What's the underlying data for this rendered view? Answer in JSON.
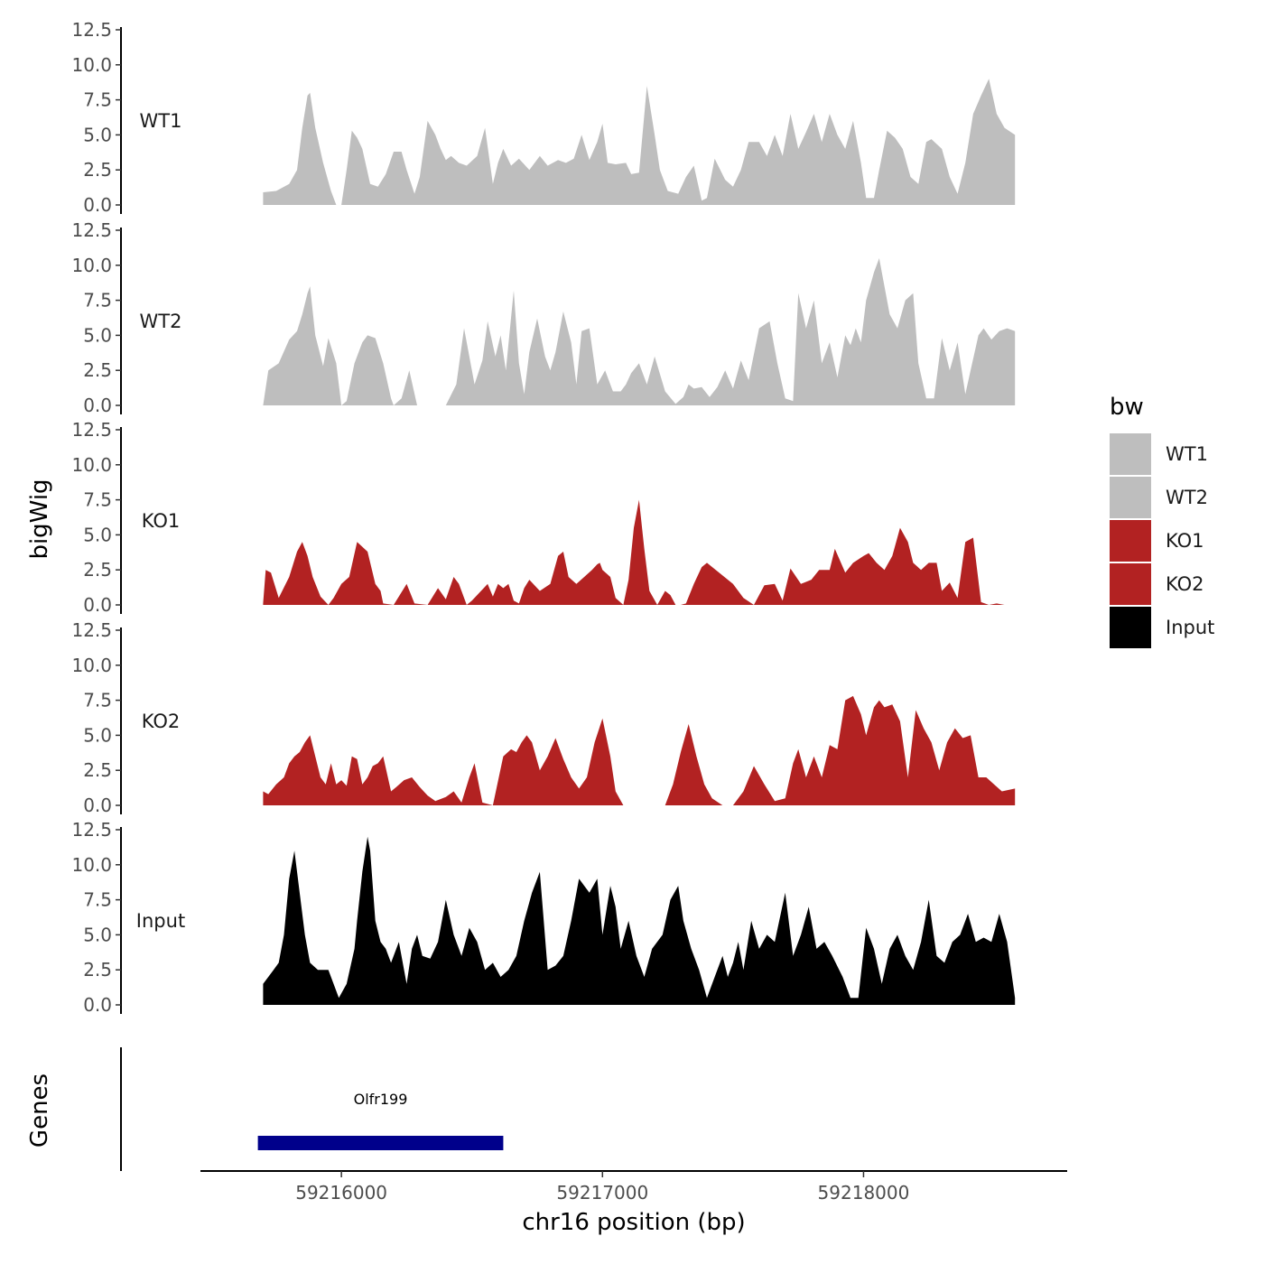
{
  "chart_data": {
    "type": "area",
    "ylabel": "bigWig",
    "xlabel": "chr16 position (bp)",
    "x_ticks": [
      59216000,
      59217000,
      59218000
    ],
    "x_tick_labels": [
      "59216000",
      "59217000",
      "59218000"
    ],
    "xlim": [
      59215460,
      59218780
    ],
    "data_xrange": [
      59215700,
      59218580
    ],
    "y_ticks": [
      0,
      2.5,
      5,
      7.5,
      10,
      12.5
    ],
    "y_tick_labels": [
      "0.0",
      "2.5",
      "5.0",
      "7.5",
      "10.0",
      "12.5"
    ],
    "ylim": [
      0,
      12.5
    ],
    "legend": {
      "title": "bw",
      "position": "right"
    },
    "colors": {
      "WT1": "#bebebe",
      "WT2": "#bebebe",
      "KO1": "#b22222",
      "KO2": "#b22222",
      "Input": "#000000",
      "gene": "#00008b"
    },
    "series": [
      {
        "name": "WT1",
        "x": [
          59215700,
          59215750,
          59215800,
          59215830,
          59215850,
          59215870,
          59215880,
          59215900,
          59215930,
          59215960,
          59215980,
          59216000,
          59216020,
          59216040,
          59216060,
          59216080,
          59216110,
          59216140,
          59216170,
          59216200,
          59216230,
          59216250,
          59216280,
          59216300,
          59216330,
          59216360,
          59216380,
          59216400,
          59216420,
          59216450,
          59216480,
          59216520,
          59216550,
          59216580,
          59216600,
          59216620,
          59216650,
          59216680,
          59216720,
          59216760,
          59216790,
          59216830,
          59216860,
          59216890,
          59216920,
          59216950,
          59216980,
          59217000,
          59217020,
          59217050,
          59217090,
          59217110,
          59217140,
          59217170,
          59217200,
          59217220,
          59217250,
          59217290,
          59217320,
          59217350,
          59217380,
          59217400,
          59217430,
          59217470,
          59217500,
          59217530,
          59217560,
          59217600,
          59217630,
          59217660,
          59217690,
          59217720,
          59217750,
          59217780,
          59217810,
          59217840,
          59217870,
          59217900,
          59217930,
          59217960,
          59217990,
          59218010,
          59218040,
          59218060,
          59218090,
          59218120,
          59218150,
          59218180,
          59218210,
          59218240,
          59218260,
          59218300,
          59218330,
          59218360,
          59218390,
          59218420,
          59218450,
          59218480,
          59218510,
          59218540,
          59218580
        ],
        "y": [
          0.9,
          1.0,
          1.5,
          2.5,
          5.5,
          7.8,
          8.0,
          5.5,
          3.0,
          1.0,
          0.0,
          0.0,
          2.5,
          5.3,
          4.8,
          4.0,
          1.5,
          1.3,
          2.2,
          3.8,
          3.8,
          2.5,
          0.8,
          2.0,
          6.0,
          5.0,
          4.0,
          3.2,
          3.5,
          3.0,
          2.8,
          3.5,
          5.5,
          1.5,
          3.0,
          4.0,
          2.8,
          3.3,
          2.5,
          3.5,
          2.8,
          3.2,
          3.0,
          3.3,
          5.0,
          3.2,
          4.5,
          5.8,
          3.0,
          2.9,
          3.0,
          2.2,
          2.3,
          8.5,
          5.0,
          2.5,
          1.0,
          0.8,
          2.0,
          2.8,
          0.3,
          0.5,
          3.3,
          1.8,
          1.3,
          2.5,
          4.5,
          4.5,
          3.5,
          5.0,
          3.5,
          6.5,
          4.0,
          5.2,
          6.5,
          4.5,
          6.5,
          5.0,
          4.0,
          6.0,
          3.0,
          0.5,
          0.5,
          2.5,
          5.3,
          4.8,
          4.0,
          2.0,
          1.5,
          4.5,
          4.7,
          4.0,
          2.0,
          0.8,
          3.0,
          6.5,
          7.8,
          9.0,
          6.5,
          5.5,
          5.0
        ]
      },
      {
        "name": "WT2",
        "x": [
          59215700,
          59215720,
          59215760,
          59215800,
          59215830,
          59215850,
          59215870,
          59215880,
          59215900,
          59215930,
          59215950,
          59215980,
          59216000,
          59216020,
          59216050,
          59216080,
          59216100,
          59216130,
          59216160,
          59216190,
          59216200,
          59216230,
          59216260,
          59216290,
          59216300,
          59216400,
          59216440,
          59216470,
          59216510,
          59216540,
          59216560,
          59216590,
          59216610,
          59216630,
          59216660,
          59216680,
          59216700,
          59216720,
          59216750,
          59216780,
          59216800,
          59216820,
          59216850,
          59216880,
          59216900,
          59216920,
          59216950,
          59216980,
          59217010,
          59217040,
          59217070,
          59217090,
          59217110,
          59217140,
          59217170,
          59217200,
          59217240,
          59217280,
          59217310,
          59217330,
          59217350,
          59217380,
          59217410,
          59217440,
          59217470,
          59217500,
          59217530,
          59217560,
          59217600,
          59217640,
          59217670,
          59217700,
          59217730,
          59217750,
          59217780,
          59217810,
          59217840,
          59217870,
          59217900,
          59217930,
          59217950,
          59217970,
          59217990,
          59218010,
          59218040,
          59218060,
          59218080,
          59218100,
          59218130,
          59218160,
          59218190,
          59218210,
          59218240,
          59218270,
          59218300,
          59218330,
          59218360,
          59218390,
          59218410,
          59218440,
          59218460,
          59218490,
          59218520,
          59218550,
          59218580
        ],
        "y": [
          0.0,
          2.5,
          3.0,
          4.7,
          5.3,
          6.5,
          8.0,
          8.5,
          5.0,
          2.8,
          4.8,
          3.0,
          0.0,
          0.3,
          3.0,
          4.5,
          5.0,
          4.8,
          3.0,
          0.5,
          0.0,
          0.5,
          2.5,
          0.0,
          0.0,
          0.0,
          1.5,
          5.5,
          1.5,
          3.2,
          6.0,
          3.5,
          5.0,
          2.5,
          8.2,
          3.0,
          0.8,
          3.8,
          6.2,
          3.5,
          2.5,
          3.8,
          6.7,
          4.5,
          1.5,
          5.3,
          5.5,
          1.5,
          2.5,
          1.0,
          1.0,
          1.5,
          2.3,
          3.0,
          1.5,
          3.5,
          1.0,
          0.1,
          0.6,
          1.5,
          1.2,
          1.3,
          0.6,
          1.3,
          2.5,
          1.2,
          3.2,
          1.8,
          5.5,
          6.0,
          3.0,
          0.5,
          0.3,
          8.0,
          5.5,
          7.5,
          3.0,
          4.5,
          2.0,
          5.0,
          4.3,
          5.5,
          4.5,
          7.5,
          9.5,
          10.5,
          8.5,
          6.5,
          5.5,
          7.5,
          8.0,
          3.0,
          0.5,
          0.5,
          4.8,
          2.5,
          4.5,
          0.8,
          2.5,
          5.0,
          5.5,
          4.7,
          5.3,
          5.5,
          5.3
        ]
      },
      {
        "name": "KO1",
        "x": [
          59215700,
          59215710,
          59215730,
          59215760,
          59215800,
          59215830,
          59215850,
          59215870,
          59215890,
          59215920,
          59215950,
          59215970,
          59216000,
          59216030,
          59216060,
          59216100,
          59216130,
          59216150,
          59216160,
          59216200,
          59216250,
          59216280,
          59216330,
          59216370,
          59216400,
          59216430,
          59216450,
          59216480,
          59216500,
          59216560,
          59216580,
          59216600,
          59216620,
          59216640,
          59216660,
          59216680,
          59216700,
          59216720,
          59216760,
          59216800,
          59216830,
          59216850,
          59216870,
          59216900,
          59216930,
          59216960,
          59216980,
          59216990,
          59217000,
          59217030,
          59217050,
          59217080,
          59217100,
          59217120,
          59217140,
          59217160,
          59217180,
          59217210,
          59217240,
          59217260,
          59217280,
          59217300,
          59217320,
          59217350,
          59217380,
          59217400,
          59217500,
          59217540,
          59217580,
          59217620,
          59217660,
          59217690,
          59217720,
          59217760,
          59217800,
          59217830,
          59217870,
          59217890,
          59217930,
          59217960,
          59218000,
          59218020,
          59218050,
          59218080,
          59218110,
          59218140,
          59218170,
          59218190,
          59218220,
          59218250,
          59218280,
          59218300,
          59218330,
          59218360,
          59218390,
          59218420,
          59218450,
          59218480,
          59218510,
          59218540,
          59218580
        ],
        "y": [
          0.1,
          2.5,
          2.3,
          0.5,
          2.0,
          3.8,
          4.5,
          3.5,
          2.0,
          0.6,
          0.0,
          0.5,
          1.5,
          2.0,
          4.5,
          3.8,
          1.5,
          1.0,
          0.1,
          0.0,
          1.5,
          0.1,
          0.0,
          1.2,
          0.4,
          2.0,
          1.5,
          0.0,
          0.3,
          1.5,
          0.6,
          1.5,
          1.2,
          1.5,
          0.3,
          0.1,
          1.2,
          1.8,
          1.0,
          1.5,
          3.5,
          3.8,
          2.0,
          1.5,
          2.0,
          2.5,
          2.9,
          3.0,
          2.5,
          2.0,
          0.5,
          0.0,
          1.8,
          5.5,
          7.5,
          4.0,
          1.0,
          0.0,
          1.0,
          0.7,
          0.0,
          0.0,
          0.1,
          1.5,
          2.7,
          3.0,
          1.5,
          0.5,
          0.0,
          1.4,
          1.5,
          0.3,
          2.6,
          1.5,
          1.8,
          2.5,
          2.5,
          4.0,
          2.3,
          3.0,
          3.5,
          3.7,
          3.0,
          2.5,
          3.5,
          5.5,
          4.5,
          3.0,
          2.5,
          3.0,
          3.0,
          1.0,
          1.6,
          0.5,
          4.5,
          4.8,
          0.2,
          0.0,
          0.1,
          0.0,
          0.0
        ]
      },
      {
        "name": "KO2",
        "x": [
          59215700,
          59215720,
          59215750,
          59215780,
          59215800,
          59215820,
          59215840,
          59215860,
          59215880,
          59215900,
          59215920,
          59215940,
          59215960,
          59215980,
          59216000,
          59216020,
          59216040,
          59216060,
          59216080,
          59216100,
          59216120,
          59216140,
          59216160,
          59216190,
          59216210,
          59216240,
          59216270,
          59216300,
          59216330,
          59216360,
          59216400,
          59216430,
          59216460,
          59216490,
          59216510,
          59216540,
          59216580,
          59216620,
          59216650,
          59216670,
          59216690,
          59216710,
          59216730,
          59216760,
          59216790,
          59216820,
          59216850,
          59216880,
          59216910,
          59216940,
          59216970,
          59217000,
          59217030,
          59217050,
          59217080,
          59217110,
          59217240,
          59217270,
          59217300,
          59217330,
          59217360,
          59217390,
          59217420,
          59217460,
          59217500,
          59217540,
          59217580,
          59217620,
          59217660,
          59217700,
          59217730,
          59217750,
          59217780,
          59217810,
          59217840,
          59217870,
          59217900,
          59217930,
          59217960,
          59217990,
          59218010,
          59218040,
          59218060,
          59218080,
          59218110,
          59218140,
          59218170,
          59218200,
          59218230,
          59218260,
          59218290,
          59218320,
          59218350,
          59218380,
          59218410,
          59218440,
          59218470,
          59218500,
          59218530,
          59218580
        ],
        "y": [
          1.0,
          0.8,
          1.5,
          2.0,
          3.0,
          3.5,
          3.8,
          4.5,
          5.0,
          3.5,
          2.0,
          1.5,
          3.0,
          1.5,
          1.8,
          1.4,
          3.5,
          3.3,
          1.5,
          2.0,
          2.8,
          3.0,
          3.5,
          1.0,
          1.3,
          1.8,
          2.0,
          1.3,
          0.7,
          0.3,
          0.6,
          1.0,
          0.2,
          2.0,
          3.0,
          0.2,
          0.0,
          3.5,
          4.0,
          3.8,
          4.5,
          5.0,
          4.5,
          2.5,
          3.5,
          4.8,
          3.3,
          2.0,
          1.2,
          2.0,
          4.5,
          6.2,
          3.5,
          1.0,
          0.0,
          0.0,
          0.0,
          1.5,
          3.8,
          5.8,
          3.5,
          1.5,
          0.5,
          0.0,
          0.0,
          1.0,
          2.8,
          1.5,
          0.3,
          0.5,
          3.0,
          4.0,
          2.0,
          3.5,
          2.0,
          4.3,
          4.0,
          7.5,
          7.8,
          6.5,
          5.0,
          7.0,
          7.5,
          7.0,
          7.2,
          6.0,
          2.0,
          6.8,
          5.5,
          4.5,
          2.5,
          4.5,
          5.5,
          4.8,
          5.0,
          2.0,
          2.0,
          1.5,
          1.0,
          1.2
        ]
      },
      {
        "name": "Input",
        "x": [
          59215700,
          59215720,
          59215740,
          59215760,
          59215780,
          59215800,
          59215820,
          59215840,
          59215860,
          59215880,
          59215910,
          59215950,
          59215990,
          59216020,
          59216050,
          59216060,
          59216080,
          59216100,
          59216110,
          59216130,
          59216150,
          59216170,
          59216190,
          59216220,
          59216250,
          59216270,
          59216290,
          59216310,
          59216340,
          59216370,
          59216400,
          59216430,
          59216460,
          59216490,
          59216520,
          59216550,
          59216580,
          59216610,
          59216640,
          59216670,
          59216700,
          59216730,
          59216760,
          59216790,
          59216820,
          59216850,
          59216880,
          59216910,
          59216950,
          59216980,
          59217000,
          59217030,
          59217050,
          59217070,
          59217100,
          59217130,
          59217160,
          59217190,
          59217230,
          59217260,
          59217290,
          59217310,
          59217340,
          59217370,
          59217400,
          59217430,
          59217460,
          59217480,
          59217500,
          59217520,
          59217540,
          59217570,
          59217600,
          59217630,
          59217660,
          59217700,
          59217730,
          59217760,
          59217790,
          59217820,
          59217850,
          59217880,
          59217920,
          59217950,
          59217980,
          59218010,
          59218040,
          59218070,
          59218100,
          59218130,
          59218160,
          59218190,
          59218220,
          59218250,
          59218280,
          59218310,
          59218340,
          59218370,
          59218400,
          59218430,
          59218460,
          59218490,
          59218520,
          59218550,
          59218580
        ],
        "y": [
          1.5,
          2.0,
          2.5,
          3.0,
          5.0,
          9.0,
          11.0,
          8.0,
          5.0,
          3.0,
          2.5,
          2.5,
          0.5,
          1.5,
          4.0,
          6.0,
          9.5,
          12.0,
          11.0,
          6.0,
          4.5,
          4.0,
          3.0,
          4.5,
          1.5,
          4.0,
          5.0,
          3.5,
          3.3,
          4.5,
          7.5,
          5.0,
          3.5,
          5.5,
          4.5,
          2.5,
          3.0,
          2.0,
          2.5,
          3.5,
          6.0,
          8.0,
          9.5,
          2.5,
          2.8,
          3.5,
          6.0,
          9.0,
          8.0,
          9.0,
          5.0,
          8.5,
          7.0,
          4.0,
          6.0,
          3.5,
          2.0,
          4.0,
          5.0,
          7.5,
          8.5,
          6.0,
          4.0,
          2.5,
          0.5,
          2.0,
          3.5,
          2.0,
          3.0,
          4.5,
          2.5,
          6.0,
          4.0,
          5.0,
          4.5,
          8.0,
          3.5,
          5.0,
          7.0,
          4.0,
          4.5,
          3.5,
          2.0,
          0.5,
          0.5,
          5.5,
          4.0,
          1.5,
          4.0,
          5.0,
          3.5,
          2.5,
          4.5,
          7.5,
          3.5,
          3.0,
          4.5,
          5.0,
          6.5,
          4.5,
          4.8,
          4.5,
          6.5,
          4.5,
          0.5
        ]
      }
    ],
    "genes": [
      {
        "name": "Olfr199",
        "start": 59215680,
        "end": 59216620,
        "label_pos": 59216150
      }
    ],
    "gene_track_label": "Genes"
  }
}
